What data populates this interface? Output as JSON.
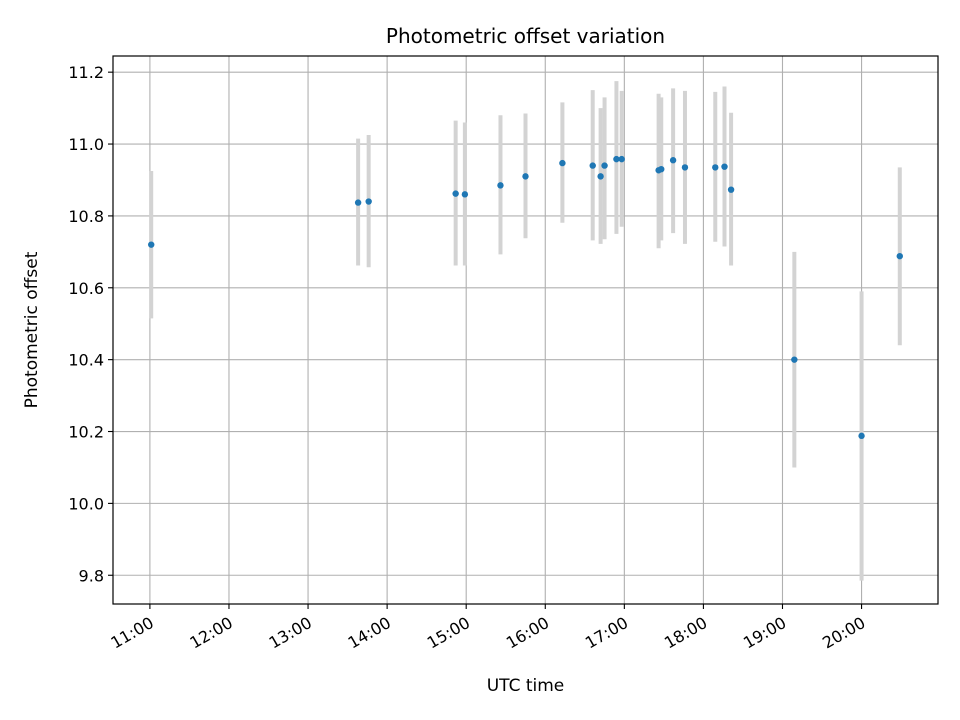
{
  "chart_data": {
    "type": "scatter",
    "title": "Photometric offset variation",
    "xlabel": "UTC time",
    "ylabel": "Photometric offset",
    "x_tick_labels": [
      "11:00",
      "12:00",
      "13:00",
      "14:00",
      "15:00",
      "16:00",
      "17:00",
      "18:00",
      "19:00",
      "20:00"
    ],
    "y_tick_labels": [
      "9.8",
      "10.0",
      "10.2",
      "10.4",
      "10.6",
      "10.8",
      "11.0",
      "11.2"
    ],
    "y_ticks": [
      9.8,
      10.0,
      10.2,
      10.4,
      10.6,
      10.8,
      11.0,
      11.2
    ],
    "xlim": [
      "10:32",
      "20:58"
    ],
    "ylim": [
      9.72,
      11.245
    ],
    "grid": true,
    "marker_color": "#1f77b4",
    "errorbar_color": "#d3d3d3",
    "points": [
      {
        "time": "11:01",
        "y": 10.72,
        "lo": 10.515,
        "hi": 10.925
      },
      {
        "time": "13:38",
        "y": 10.837,
        "lo": 10.662,
        "hi": 11.015
      },
      {
        "time": "13:46",
        "y": 10.84,
        "lo": 10.657,
        "hi": 11.025
      },
      {
        "time": "14:52",
        "y": 10.862,
        "lo": 10.662,
        "hi": 11.065
      },
      {
        "time": "14:59",
        "y": 10.86,
        "lo": 10.662,
        "hi": 11.06
      },
      {
        "time": "15:26",
        "y": 10.885,
        "lo": 10.693,
        "hi": 11.08
      },
      {
        "time": "15:45",
        "y": 10.91,
        "lo": 10.738,
        "hi": 11.085
      },
      {
        "time": "16:13",
        "y": 10.947,
        "lo": 10.781,
        "hi": 11.116
      },
      {
        "time": "16:36",
        "y": 10.94,
        "lo": 10.732,
        "hi": 11.15
      },
      {
        "time": "16:42",
        "y": 10.91,
        "lo": 10.722,
        "hi": 11.1
      },
      {
        "time": "16:45",
        "y": 10.94,
        "lo": 10.735,
        "hi": 11.13
      },
      {
        "time": "16:54",
        "y": 10.958,
        "lo": 10.75,
        "hi": 11.175
      },
      {
        "time": "16:58",
        "y": 10.958,
        "lo": 10.77,
        "hi": 11.148
      },
      {
        "time": "17:26",
        "y": 10.927,
        "lo": 10.71,
        "hi": 11.14
      },
      {
        "time": "17:28",
        "y": 10.93,
        "lo": 10.732,
        "hi": 11.13
      },
      {
        "time": "17:37",
        "y": 10.955,
        "lo": 10.752,
        "hi": 11.155
      },
      {
        "time": "17:46",
        "y": 10.935,
        "lo": 10.722,
        "hi": 11.148
      },
      {
        "time": "18:09",
        "y": 10.935,
        "lo": 10.728,
        "hi": 11.145
      },
      {
        "time": "18:16",
        "y": 10.937,
        "lo": 10.715,
        "hi": 11.16
      },
      {
        "time": "18:21",
        "y": 10.873,
        "lo": 10.662,
        "hi": 11.087
      },
      {
        "time": "19:09",
        "y": 10.4,
        "lo": 10.1,
        "hi": 10.7
      },
      {
        "time": "20:00",
        "y": 10.188,
        "lo": 9.785,
        "hi": 10.59
      },
      {
        "time": "20:29",
        "y": 10.688,
        "lo": 10.44,
        "hi": 10.935
      }
    ]
  }
}
